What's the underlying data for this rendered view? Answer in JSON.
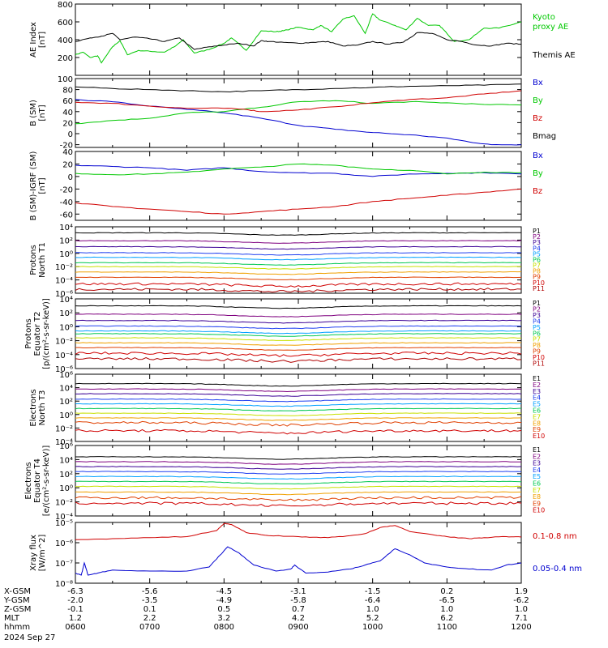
{
  "chart_data": [
    {
      "id": "ae",
      "type": "line",
      "ylabel_lines": [
        "AE Index",
        "[nT]"
      ],
      "ylim": [
        0,
        800
      ],
      "yticks": [
        {
          "v": 200,
          "label": "200"
        },
        {
          "v": 400,
          "label": "400"
        },
        {
          "v": 600,
          "label": "600"
        },
        {
          "v": 800,
          "label": "800"
        }
      ],
      "series": [
        {
          "name": "Kyoto proxy AE",
          "legend_lines": [
            "Kyoto",
            "proxy AE"
          ],
          "color": "#00c800",
          "x": [
            6.0,
            6.1,
            6.2,
            6.3,
            6.35,
            6.5,
            6.6,
            6.7,
            6.85,
            7.0,
            7.2,
            7.35,
            7.45,
            7.6,
            7.8,
            8.0,
            8.1,
            8.3,
            8.5,
            8.7,
            8.8,
            9.0,
            9.2,
            9.3,
            9.45,
            9.6,
            9.75,
            9.9,
            10.0,
            10.1,
            10.3,
            10.45,
            10.6,
            10.75,
            10.9,
            11.0,
            11.1,
            11.3,
            11.5,
            11.7,
            12.0
          ],
          "y": [
            230,
            260,
            200,
            220,
            140,
            320,
            390,
            230,
            280,
            270,
            260,
            330,
            400,
            250,
            290,
            360,
            420,
            280,
            500,
            490,
            500,
            540,
            510,
            560,
            490,
            630,
            670,
            470,
            690,
            620,
            560,
            510,
            640,
            560,
            560,
            470,
            380,
            400,
            530,
            530,
            600
          ]
        },
        {
          "name": "Themis AE",
          "legend_lines": [
            "Themis AE"
          ],
          "color": "#000000",
          "x": [
            6.0,
            6.2,
            6.35,
            6.5,
            6.6,
            6.8,
            7.0,
            7.2,
            7.4,
            7.6,
            7.8,
            8.0,
            8.2,
            8.4,
            8.5,
            8.6,
            8.8,
            9.0,
            9.2,
            9.4,
            9.6,
            9.8,
            10.0,
            10.2,
            10.4,
            10.5,
            10.6,
            10.8,
            11.0,
            11.2,
            11.4,
            11.6,
            11.8,
            12.0
          ],
          "y": [
            380,
            420,
            440,
            470,
            400,
            430,
            410,
            380,
            420,
            290,
            320,
            340,
            360,
            330,
            390,
            380,
            370,
            360,
            370,
            380,
            330,
            340,
            380,
            350,
            370,
            420,
            480,
            470,
            400,
            380,
            340,
            330,
            360,
            350
          ]
        }
      ]
    },
    {
      "id": "bsm",
      "type": "line",
      "ylabel_lines": [
        "B (SM)",
        "[nT]"
      ],
      "ylim": [
        -25,
        100
      ],
      "yticks": [
        {
          "v": -20,
          "label": "-20"
        },
        {
          "v": 0,
          "label": "0"
        },
        {
          "v": 20,
          "label": "20"
        },
        {
          "v": 40,
          "label": "40"
        },
        {
          "v": 60,
          "label": "60"
        },
        {
          "v": 80,
          "label": "80"
        },
        {
          "v": 100,
          "label": "100"
        }
      ],
      "series": [
        {
          "name": "Bx",
          "color": "#0000d0",
          "x": [
            6.0,
            6.5,
            7.0,
            7.5,
            8.0,
            8.5,
            9.0,
            9.5,
            10.0,
            10.5,
            11.0,
            11.3,
            11.6,
            12.0
          ],
          "y": [
            62,
            58,
            50,
            44,
            38,
            28,
            15,
            8,
            2,
            -2,
            -8,
            -15,
            -20,
            -20
          ]
        },
        {
          "name": "By",
          "color": "#00c800",
          "x": [
            6.0,
            6.5,
            7.0,
            7.5,
            8.0,
            8.5,
            9.0,
            9.5,
            10.0,
            10.5,
            11.0,
            11.5,
            12.0
          ],
          "y": [
            18,
            24,
            28,
            38,
            40,
            48,
            58,
            60,
            55,
            58,
            56,
            53,
            52
          ]
        },
        {
          "name": "Bz",
          "color": "#d00000",
          "x": [
            6.0,
            6.5,
            7.0,
            7.5,
            8.0,
            8.3,
            8.5,
            9.0,
            9.5,
            10.0,
            10.5,
            11.0,
            11.5,
            12.0
          ],
          "y": [
            57,
            55,
            50,
            46,
            46,
            44,
            40,
            43,
            49,
            56,
            62,
            65,
            72,
            78
          ]
        },
        {
          "name": "Bmag",
          "color": "#000000",
          "x": [
            6.0,
            6.5,
            7.0,
            7.5,
            8.0,
            8.5,
            9.0,
            9.5,
            10.0,
            10.5,
            11.0,
            11.5,
            12.0
          ],
          "y": [
            85,
            82,
            80,
            78,
            76,
            78,
            80,
            82,
            84,
            86,
            87,
            88,
            90
          ]
        }
      ]
    },
    {
      "id": "bres",
      "type": "line",
      "ylabel_lines": [
        "B (SM)-IGRF (SM)",
        "[nT]"
      ],
      "ylim": [
        -70,
        40
      ],
      "yticks": [
        {
          "v": -60,
          "label": "-60"
        },
        {
          "v": -40,
          "label": "-40"
        },
        {
          "v": -20,
          "label": "-20"
        },
        {
          "v": 0,
          "label": "0"
        },
        {
          "v": 20,
          "label": "20"
        },
        {
          "v": 40,
          "label": "40"
        }
      ],
      "series": [
        {
          "name": "Bx",
          "color": "#0000d0",
          "x": [
            6.0,
            6.5,
            7.0,
            7.5,
            8.0,
            8.5,
            9.0,
            9.5,
            10.0,
            10.5,
            11.0,
            11.5,
            12.0
          ],
          "y": [
            18,
            16,
            14,
            10,
            14,
            8,
            6,
            5,
            0,
            4,
            5,
            6,
            4
          ]
        },
        {
          "name": "By",
          "color": "#00c800",
          "x": [
            6.0,
            6.5,
            7.0,
            7.5,
            8.0,
            8.5,
            9.0,
            9.5,
            10.0,
            10.5,
            11.0,
            11.5,
            12.0
          ],
          "y": [
            5,
            3,
            4,
            7,
            12,
            15,
            20,
            18,
            12,
            10,
            4,
            7,
            6
          ]
        },
        {
          "name": "Bz",
          "color": "#d00000",
          "x": [
            6.0,
            6.5,
            7.0,
            7.5,
            8.0,
            8.5,
            9.0,
            9.5,
            10.0,
            10.5,
            11.0,
            11.5,
            12.0
          ],
          "y": [
            -42,
            -48,
            -52,
            -56,
            -60,
            -56,
            -52,
            -48,
            -40,
            -35,
            -30,
            -25,
            -20
          ]
        }
      ]
    },
    {
      "id": "pn",
      "type": "line",
      "ylog": true,
      "ylabel_lines": [
        "Protons",
        "North T1"
      ],
      "ylim": [
        -6,
        4
      ],
      "yticks": [
        {
          "v": 4,
          "label": "10⁴"
        },
        {
          "v": 2,
          "label": "10²"
        },
        {
          "v": 0,
          "label": "10⁰"
        },
        {
          "v": -2,
          "label": "10⁻²"
        },
        {
          "v": -4,
          "label": "10⁻⁴"
        },
        {
          "v": -6,
          "label": "10⁻⁶"
        }
      ],
      "series": [
        {
          "name": "P1",
          "color": "#000000",
          "level": 3.1
        },
        {
          "name": "P2",
          "color": "#7f007f",
          "level": 1.9
        },
        {
          "name": "P3",
          "color": "#3b0096",
          "level": 1.0
        },
        {
          "name": "P4",
          "color": "#2040f0",
          "level": 0.1
        },
        {
          "name": "P5",
          "color": "#00a0ff",
          "level": -0.6
        },
        {
          "name": "P6",
          "color": "#00c850",
          "level": -1.4
        },
        {
          "name": "P7",
          "color": "#c8e000",
          "level": -2.0
        },
        {
          "name": "P8",
          "color": "#f0a000",
          "level": -2.8
        },
        {
          "name": "P9",
          "color": "#e04000",
          "level": -3.6
        },
        {
          "name": "P10",
          "color": "#d00000",
          "level": -4.6
        },
        {
          "name": "P11",
          "color": "#b00000",
          "level": -5.4
        }
      ]
    },
    {
      "id": "pe",
      "type": "line",
      "ylog": true,
      "ylabel_lines": [
        "Protons",
        "Equator T2",
        "[p/(cm²-s-sr-keV)]"
      ],
      "ylim": [
        -6,
        4
      ],
      "yticks": [
        {
          "v": 4,
          "label": "10⁴"
        },
        {
          "v": 2,
          "label": "10²"
        },
        {
          "v": 0,
          "label": "10⁰"
        },
        {
          "v": -2,
          "label": "10⁻²"
        },
        {
          "v": -4,
          "label": "10⁻⁴"
        },
        {
          "v": -6,
          "label": "10⁻⁶"
        }
      ],
      "series": [
        {
          "name": "P1",
          "color": "#000000",
          "level": 3.0
        },
        {
          "name": "P2",
          "color": "#7f007f",
          "level": 1.8
        },
        {
          "name": "P3",
          "color": "#3b0096",
          "level": 0.9
        },
        {
          "name": "P4",
          "color": "#2040f0",
          "level": 0.1
        },
        {
          "name": "P5",
          "color": "#00a0ff",
          "level": -0.6
        },
        {
          "name": "P6",
          "color": "#00c850",
          "level": -1.0
        },
        {
          "name": "P7",
          "color": "#c8e000",
          "level": -1.6
        },
        {
          "name": "P8",
          "color": "#f0a000",
          "level": -2.3
        },
        {
          "name": "P9",
          "color": "#e04000",
          "level": -3.0
        },
        {
          "name": "P10",
          "color": "#d00000",
          "level": -3.8
        },
        {
          "name": "P11",
          "color": "#b00000",
          "level": -4.6
        }
      ]
    },
    {
      "id": "en",
      "type": "line",
      "ylog": true,
      "ylabel_lines": [
        "Electrons",
        "North T3"
      ],
      "ylim": [
        -4,
        6
      ],
      "yticks": [
        {
          "v": 6,
          "label": "10⁶"
        },
        {
          "v": 4,
          "label": "10⁴"
        },
        {
          "v": 2,
          "label": "10²"
        },
        {
          "v": 0,
          "label": "10⁰"
        },
        {
          "v": -2,
          "label": "10⁻²"
        },
        {
          "v": -4,
          "label": "10⁻⁴"
        }
      ],
      "series": [
        {
          "name": "E1",
          "color": "#000000",
          "level": 4.6
        },
        {
          "name": "E2",
          "color": "#7f007f",
          "level": 3.8
        },
        {
          "name": "E3",
          "color": "#3b0096",
          "level": 3.1
        },
        {
          "name": "E4",
          "color": "#2040f0",
          "level": 2.3
        },
        {
          "name": "E5",
          "color": "#00a0ff",
          "level": 1.6
        },
        {
          "name": "E6",
          "color": "#00c850",
          "level": 0.9
        },
        {
          "name": "E7",
          "color": "#c8e000",
          "level": 0.2
        },
        {
          "name": "E8",
          "color": "#f0a000",
          "level": -0.5
        },
        {
          "name": "E9",
          "color": "#e04000",
          "level": -1.2
        },
        {
          "name": "E10",
          "color": "#d00000",
          "level": -2.4
        }
      ]
    },
    {
      "id": "ee",
      "type": "line",
      "ylog": true,
      "ylabel_lines": [
        "Electrons",
        "Equator T4",
        "[e/(cm²-s-sr-keV)]"
      ],
      "ylim": [
        -4,
        6
      ],
      "yticks": [
        {
          "v": 6,
          "label": "10⁶"
        },
        {
          "v": 4,
          "label": "10⁴"
        },
        {
          "v": 2,
          "label": "10²"
        },
        {
          "v": 0,
          "label": "10⁰"
        },
        {
          "v": -2,
          "label": "10⁻²"
        },
        {
          "v": -4,
          "label": "10⁻⁴"
        }
      ],
      "series": [
        {
          "name": "E1",
          "color": "#000000",
          "level": 4.4
        },
        {
          "name": "E2",
          "color": "#7f007f",
          "level": 3.7
        },
        {
          "name": "E3",
          "color": "#3b0096",
          "level": 3.0
        },
        {
          "name": "E4",
          "color": "#2040f0",
          "level": 2.3
        },
        {
          "name": "E5",
          "color": "#00a0ff",
          "level": 1.6
        },
        {
          "name": "E6",
          "color": "#00c850",
          "level": 0.9
        },
        {
          "name": "E7",
          "color": "#c8e000",
          "level": 0.2
        },
        {
          "name": "E8",
          "color": "#f0a000",
          "level": -0.6
        },
        {
          "name": "E9",
          "color": "#e04000",
          "level": -1.4
        },
        {
          "name": "E10",
          "color": "#d00000",
          "level": -2.2
        }
      ]
    },
    {
      "id": "xray",
      "type": "line",
      "ylog": true,
      "ylabel_lines": [
        "Xray flux",
        "[W/m^2]"
      ],
      "ylim": [
        -8,
        -5
      ],
      "yticks": [
        {
          "v": -5,
          "label": "10⁻⁵"
        },
        {
          "v": -6,
          "label": "10⁻⁶"
        },
        {
          "v": -7,
          "label": "10⁻⁷"
        },
        {
          "v": -8,
          "label": "10⁻⁸"
        }
      ],
      "series": [
        {
          "name": "0.1-0.8 nm",
          "color": "#d00000",
          "x": [
            6.0,
            6.5,
            7.0,
            7.5,
            7.9,
            8.0,
            8.1,
            8.3,
            8.6,
            9.0,
            9.3,
            9.6,
            9.9,
            10.1,
            10.3,
            10.5,
            10.8,
            11.0,
            11.3,
            11.5,
            11.8,
            12.0
          ],
          "y": [
            -5.85,
            -5.8,
            -5.75,
            -5.7,
            -5.4,
            -5.05,
            -5.1,
            -5.5,
            -5.65,
            -5.7,
            -5.75,
            -5.7,
            -5.55,
            -5.25,
            -5.15,
            -5.45,
            -5.6,
            -5.7,
            -5.8,
            -5.75,
            -5.7,
            -5.72
          ]
        },
        {
          "name": "0.05-0.4 nm",
          "color": "#0000d0",
          "x": [
            6.0,
            6.08,
            6.12,
            6.17,
            6.3,
            6.5,
            7.0,
            7.5,
            7.8,
            7.95,
            8.05,
            8.2,
            8.4,
            8.7,
            8.9,
            8.95,
            9.1,
            9.4,
            9.7,
            9.9,
            10.1,
            10.3,
            10.5,
            10.7,
            11.0,
            11.3,
            11.6,
            11.8,
            12.0
          ],
          "y": [
            -7.5,
            -7.6,
            -7.0,
            -7.6,
            -7.5,
            -7.35,
            -7.4,
            -7.4,
            -7.2,
            -6.6,
            -6.2,
            -6.5,
            -7.1,
            -7.4,
            -7.3,
            -7.1,
            -7.5,
            -7.45,
            -7.3,
            -7.1,
            -6.9,
            -6.3,
            -6.6,
            -7.0,
            -7.2,
            -7.3,
            -7.35,
            -7.1,
            -7.0
          ]
        }
      ]
    }
  ],
  "axis": {
    "row_labels": [
      "X-GSM",
      "Y-GSM",
      "Z-GSM",
      "MLT",
      "hhmm"
    ],
    "columns": [
      {
        "x": 6.0,
        "values": [
          "-6.3",
          "-2.0",
          "-0.1",
          "1.2",
          "0600"
        ]
      },
      {
        "x": 7.0,
        "values": [
          "-5.6",
          "-3.5",
          "0.1",
          "2.2",
          "0700"
        ]
      },
      {
        "x": 8.0,
        "values": [
          "-4.5",
          "-4.9",
          "0.5",
          "3.2",
          "0800"
        ]
      },
      {
        "x": 9.0,
        "values": [
          "-3.1",
          "-5.8",
          "0.7",
          "4.2",
          "0900"
        ]
      },
      {
        "x": 10.0,
        "values": [
          "-1.5",
          "-6.4",
          "1.0",
          "5.2",
          "1000"
        ]
      },
      {
        "x": 11.0,
        "values": [
          "0.2",
          "-6.5",
          "1.0",
          "6.2",
          "1100"
        ]
      },
      {
        "x": 12.0,
        "values": [
          "1.9",
          "-6.2",
          "1.0",
          "7.1",
          "1200"
        ]
      }
    ],
    "date": "2024 Sep 27"
  }
}
